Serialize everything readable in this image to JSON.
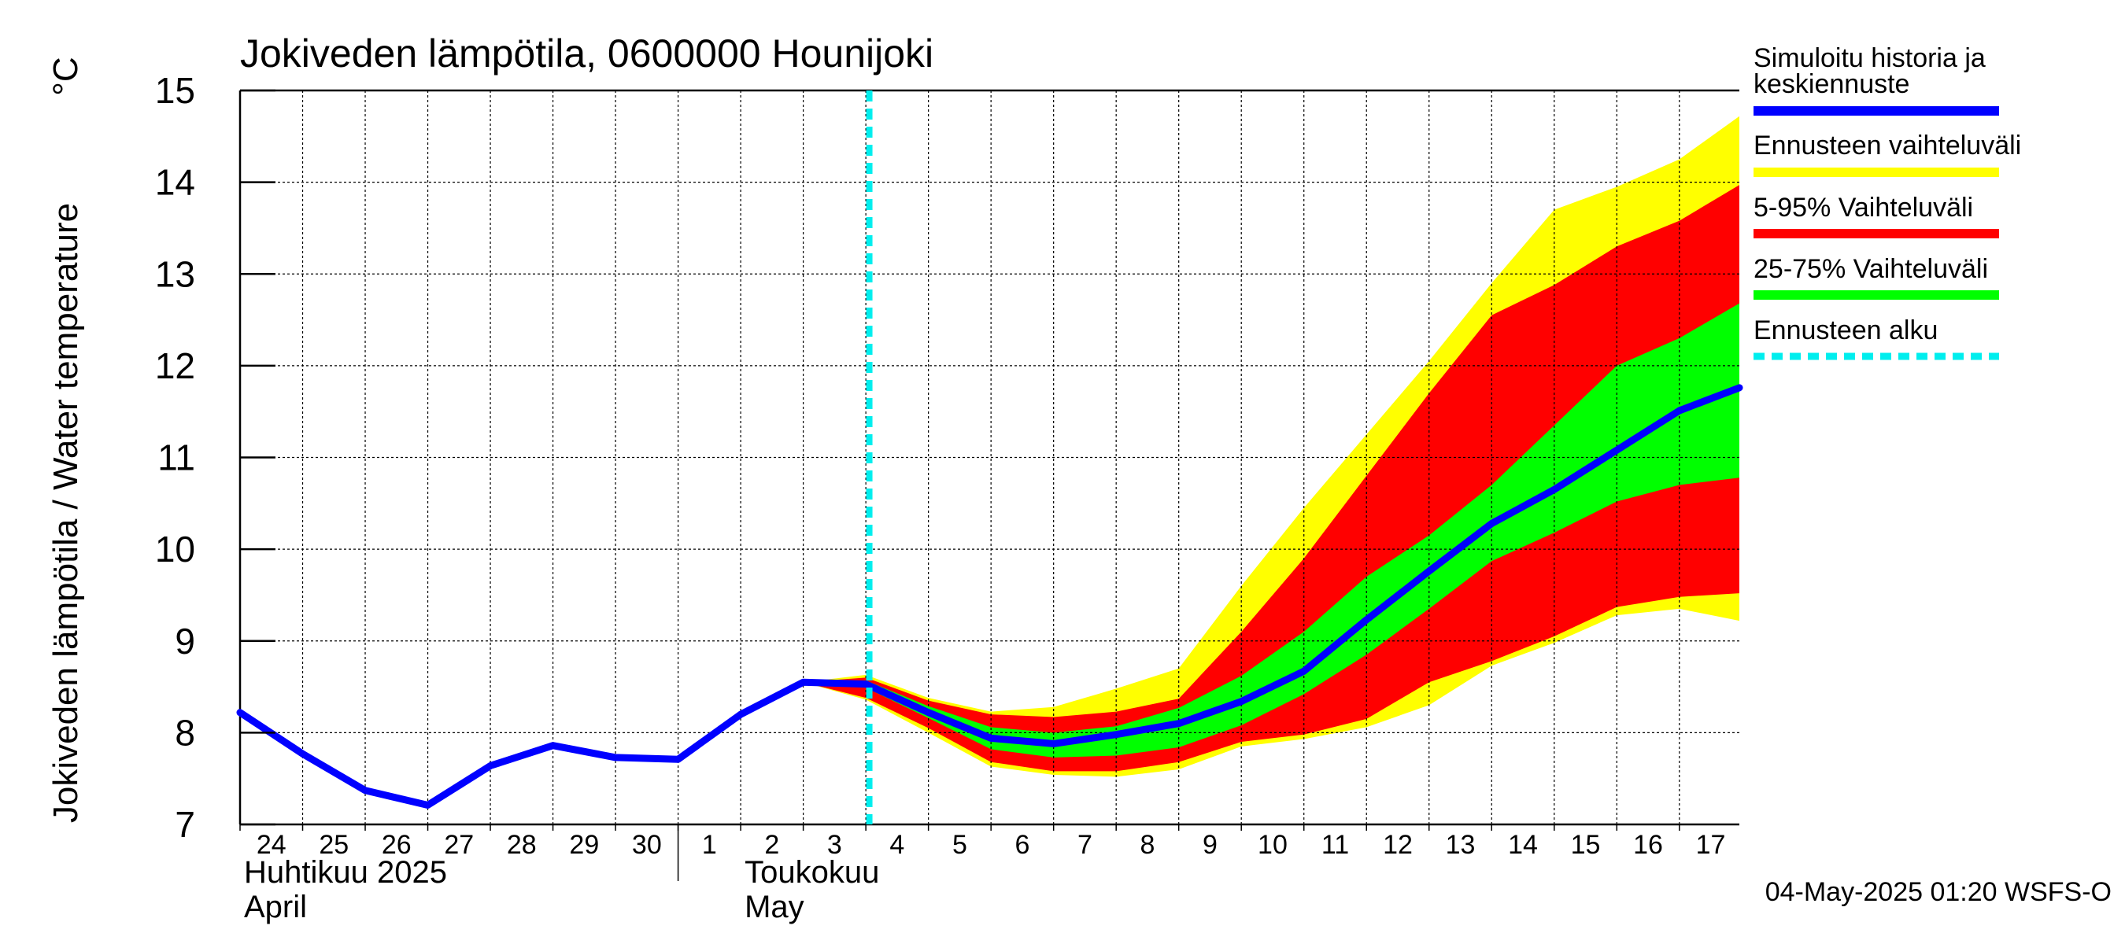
{
  "chart_data": {
    "type": "area",
    "title": "Jokiveden lämpötila, 0600000 Hounijoki",
    "ylabel": "Jokiveden lämpötila / Water temperature",
    "yunit": "°C",
    "ylim": [
      7,
      15
    ],
    "yticks": [
      "7",
      "8",
      "9",
      "10",
      "11",
      "12",
      "13",
      "14",
      "15"
    ],
    "xlim": [
      "2025-04-24",
      "2025-05-17T23:00"
    ],
    "grid": true,
    "legend_position": "right",
    "day_labels": [
      "24",
      "25",
      "26",
      "27",
      "28",
      "29",
      "30",
      "1",
      "2",
      "3",
      "4",
      "5",
      "6",
      "7",
      "8",
      "9",
      "10",
      "11",
      "12",
      "13",
      "14",
      "15",
      "16",
      "17"
    ],
    "month_labels": [
      {
        "fi": "Huhtikuu  2025",
        "en": "April"
      },
      {
        "fi": "Toukokuu",
        "en": "May"
      }
    ],
    "forecast_start": "2025-05-04T01:20",
    "x": [
      "2025-04-24",
      "2025-04-25",
      "2025-04-26",
      "2025-04-27",
      "2025-04-28",
      "2025-04-29",
      "2025-04-30",
      "2025-05-01",
      "2025-05-02",
      "2025-05-03",
      "2025-05-04",
      "2025-05-05",
      "2025-05-06",
      "2025-05-07",
      "2025-05-08",
      "2025-05-09",
      "2025-05-10",
      "2025-05-11",
      "2025-05-12",
      "2025-05-13",
      "2025-05-14",
      "2025-05-15",
      "2025-05-16",
      "2025-05-17",
      "2025-05-17T23:00"
    ],
    "series": [
      {
        "name": "Simuloitu historia ja keskiennuste",
        "role": "line",
        "color": "#0000ff",
        "values": [
          8.22,
          7.77,
          7.37,
          7.21,
          7.64,
          7.86,
          7.73,
          7.71,
          8.2,
          8.55,
          8.53,
          8.22,
          7.94,
          7.88,
          7.98,
          8.1,
          8.34,
          8.67,
          9.23,
          9.76,
          10.28,
          10.65,
          11.08,
          11.51,
          11.76
        ]
      },
      {
        "name": "Ennusteen vaihteluväli",
        "role": "band",
        "color": "#ffff00",
        "upper": [
          null,
          null,
          null,
          null,
          null,
          null,
          null,
          null,
          null,
          8.55,
          8.63,
          8.38,
          8.23,
          8.28,
          8.48,
          8.7,
          9.6,
          10.45,
          11.25,
          12.05,
          12.9,
          13.7,
          13.95,
          14.25,
          14.72
        ],
        "lower": [
          null,
          null,
          null,
          null,
          null,
          null,
          null,
          null,
          null,
          8.55,
          8.36,
          8.0,
          7.63,
          7.54,
          7.52,
          7.6,
          7.85,
          7.93,
          8.06,
          8.3,
          8.73,
          8.98,
          9.28,
          9.35,
          9.22
        ]
      },
      {
        "name": "5-95% Vaihteluväli",
        "role": "band",
        "color": "#ff0000",
        "upper": [
          null,
          null,
          null,
          null,
          null,
          null,
          null,
          null,
          null,
          8.55,
          8.6,
          8.35,
          8.2,
          8.17,
          8.23,
          8.37,
          9.1,
          9.9,
          10.8,
          11.7,
          12.55,
          12.88,
          13.3,
          13.58,
          13.97
        ],
        "lower": [
          null,
          null,
          null,
          null,
          null,
          null,
          null,
          null,
          null,
          8.55,
          8.38,
          8.05,
          7.68,
          7.58,
          7.58,
          7.68,
          7.9,
          7.98,
          8.15,
          8.55,
          8.78,
          9.05,
          9.37,
          9.48,
          9.52
        ]
      },
      {
        "name": "25-75% Vaihteluväli",
        "role": "band",
        "color": "#00ff00",
        "upper": [
          null,
          null,
          null,
          null,
          null,
          null,
          null,
          null,
          null,
          8.55,
          8.57,
          8.29,
          8.06,
          8.0,
          8.07,
          8.27,
          8.62,
          9.1,
          9.7,
          10.15,
          10.7,
          11.35,
          12.0,
          12.3,
          12.68
        ],
        "lower": [
          null,
          null,
          null,
          null,
          null,
          null,
          null,
          null,
          null,
          8.55,
          8.49,
          8.16,
          7.82,
          7.73,
          7.75,
          7.84,
          8.08,
          8.42,
          8.85,
          9.35,
          9.87,
          10.18,
          10.52,
          10.7,
          10.78
        ]
      },
      {
        "name": "Ennusteen alku",
        "role": "vline",
        "color": "#00eeee"
      }
    ]
  },
  "footer": {
    "timestamp": "04-May-2025 01:20 WSFS-O"
  }
}
